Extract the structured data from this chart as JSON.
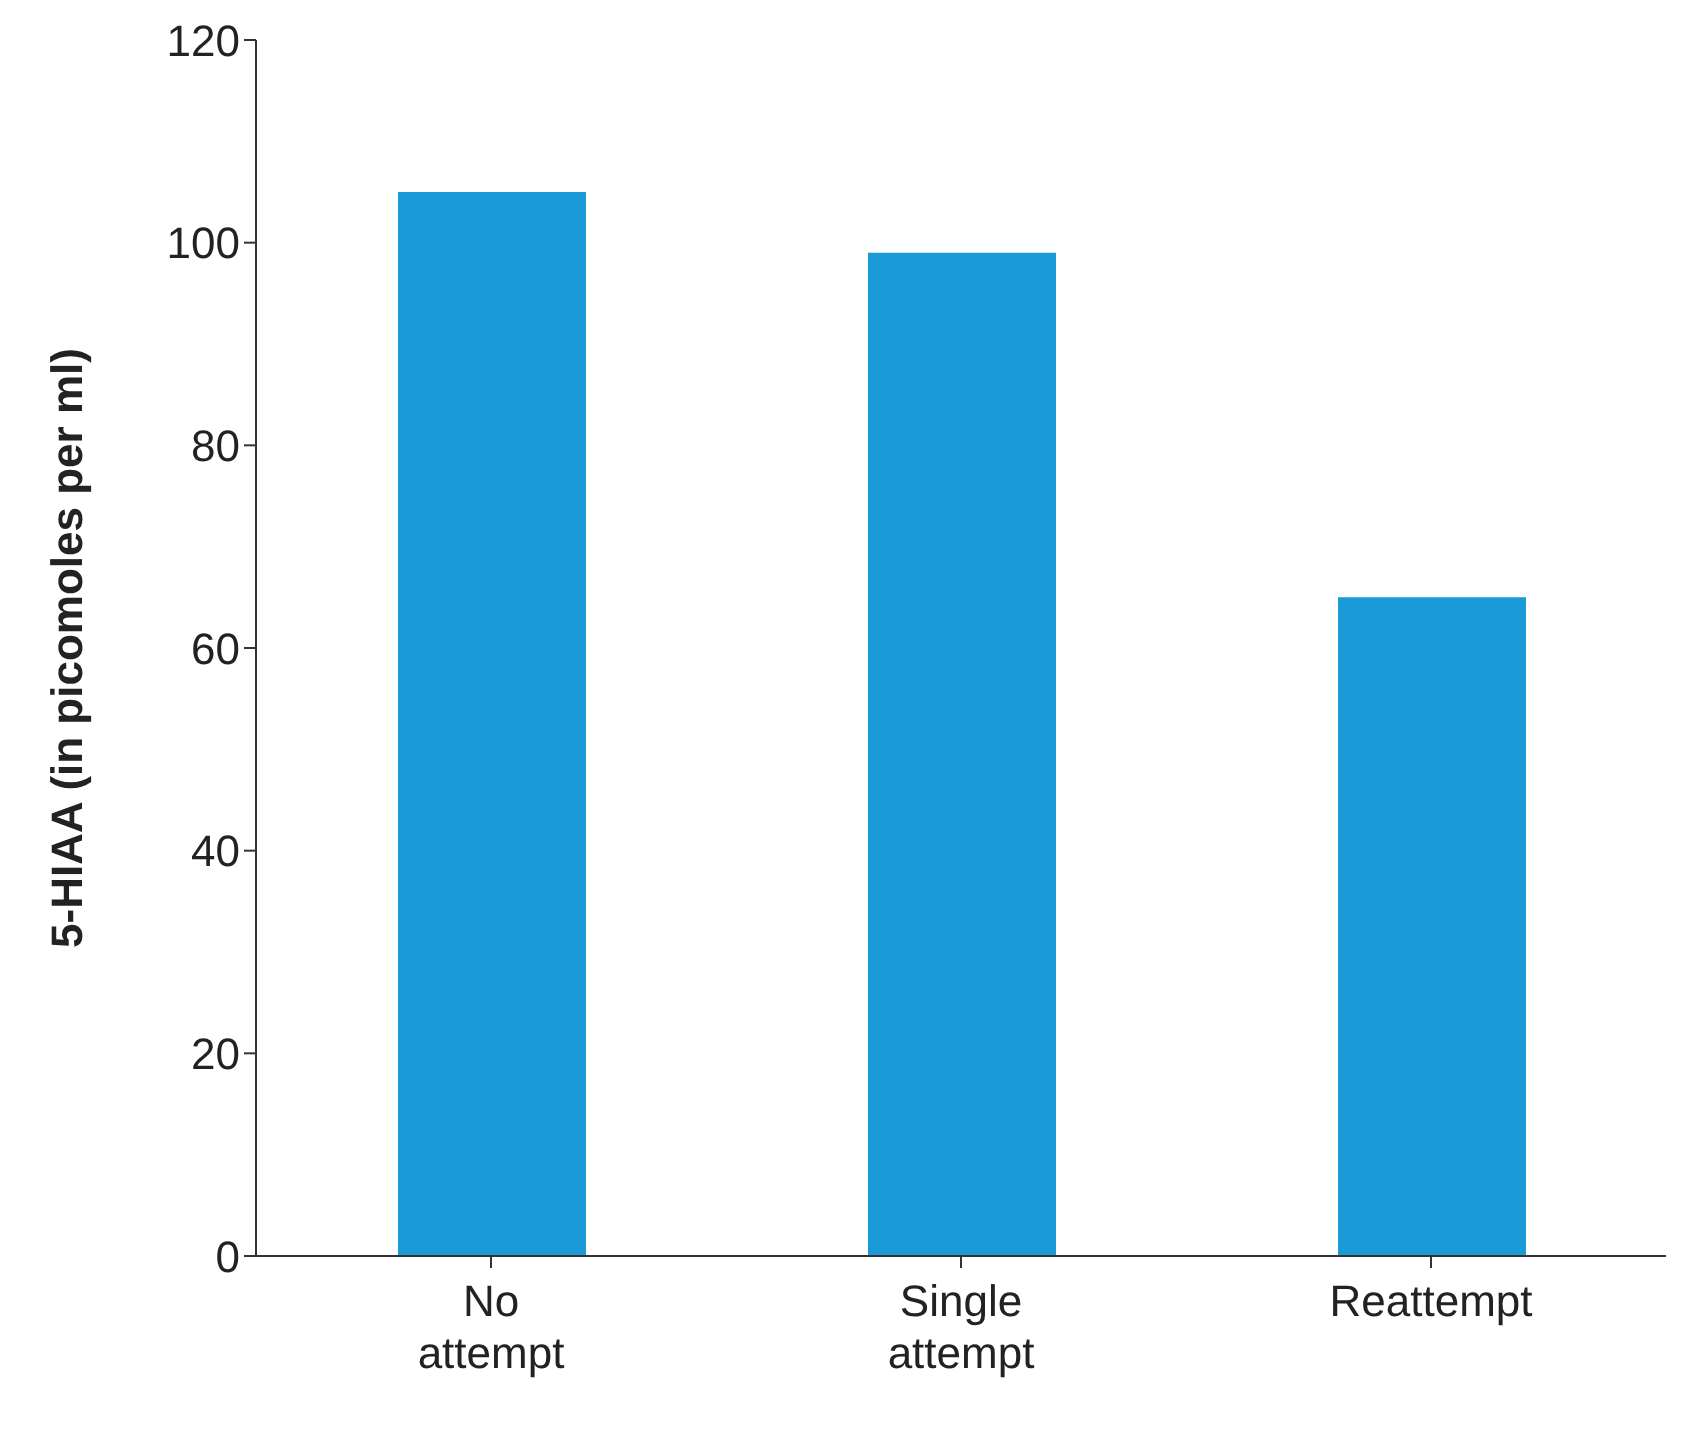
{
  "chart_data": {
    "type": "bar",
    "ylabel": "5-HIAA (in picomoles per ml)",
    "categories": [
      "No attempt",
      "Single attempt",
      "Reattempt"
    ],
    "values": [
      105,
      99,
      65
    ],
    "color": "#1a9bd7",
    "ylim": [
      0,
      120
    ],
    "yticks": [
      0,
      20,
      40,
      60,
      80,
      100,
      120
    ],
    "grid": false,
    "legend": false
  }
}
